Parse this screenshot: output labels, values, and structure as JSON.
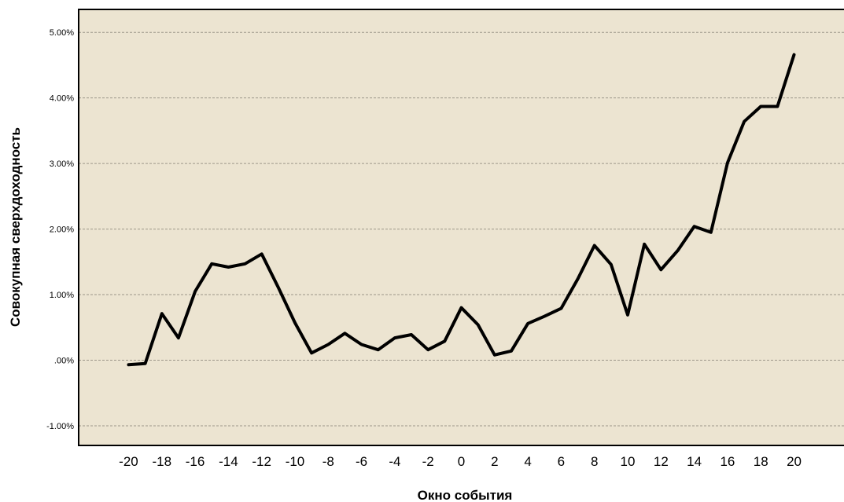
{
  "chart_data": {
    "type": "line",
    "xlabel": "Окно события",
    "ylabel": "Совокупная сверхдоходность",
    "xlim": [
      -23,
      23
    ],
    "ylim": [
      -1.3,
      5.35
    ],
    "x_ticks": [
      -20,
      -18,
      -16,
      -14,
      -12,
      -10,
      -8,
      -6,
      -4,
      -2,
      0,
      2,
      4,
      6,
      8,
      10,
      12,
      14,
      16,
      18,
      20
    ],
    "y_ticks": [
      {
        "value": 5,
        "label": "5.00%"
      },
      {
        "value": 4,
        "label": "4.00%"
      },
      {
        "value": 3,
        "label": "3.00%"
      },
      {
        "value": 2,
        "label": "2.00%"
      },
      {
        "value": 1,
        "label": "1.00%"
      },
      {
        "value": 0,
        "label": ".00%"
      },
      {
        "value": -1,
        "label": "-1.00%"
      }
    ],
    "grid": "horizontal dashed",
    "colors": {
      "plot_background": "#ece4d1",
      "line": "#000000",
      "grid": "#9c9689"
    },
    "series": [
      {
        "x": [
          -20,
          -19,
          -18,
          -17,
          -16,
          -15,
          -14,
          -13,
          -12,
          -11,
          -10,
          -9,
          -8,
          -7,
          -6,
          -5,
          -4,
          -3,
          -2,
          -1,
          0,
          1,
          2,
          3,
          4,
          5,
          6,
          7,
          8,
          9,
          10,
          11,
          12,
          13,
          14,
          15,
          16,
          17,
          18,
          19,
          20
        ],
        "values": [
          -0.07,
          -0.05,
          0.71,
          0.34,
          1.05,
          1.47,
          1.42,
          1.47,
          1.62,
          1.11,
          0.57,
          0.11,
          0.24,
          0.41,
          0.24,
          0.16,
          0.34,
          0.39,
          0.16,
          0.29,
          0.8,
          0.54,
          0.08,
          0.14,
          0.56,
          0.67,
          0.79,
          1.24,
          1.75,
          1.46,
          0.69,
          1.77,
          1.38,
          1.67,
          2.04,
          1.95,
          3.01,
          3.64,
          3.87,
          3.87,
          4.66
        ]
      }
    ]
  }
}
